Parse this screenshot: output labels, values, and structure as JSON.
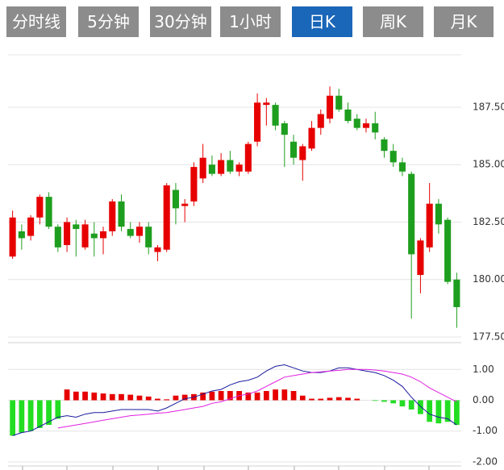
{
  "tabs": [
    "分时线",
    "5分钟",
    "30分钟",
    "1小时",
    "日K",
    "周K",
    "月K"
  ],
  "active_tab": 4,
  "chart_data": [
    {
      "type": "candlestick",
      "up_color": "#e60000",
      "down_color": "#1e9e1e",
      "open": [
        181.0,
        182.1,
        181.9,
        182.7,
        183.6,
        182.3,
        181.5,
        182.4,
        181.4,
        182.0,
        181.8,
        182.1,
        183.4,
        182.2,
        181.9,
        182.3,
        181.2,
        181.3,
        183.9,
        183.2,
        183.4,
        184.4,
        185.0,
        184.6,
        185.2,
        184.7,
        184.7,
        186.0,
        187.6,
        187.6,
        186.8,
        186.0,
        185.2,
        185.7,
        186.6,
        187.0,
        188.0,
        187.4,
        187.0,
        186.6,
        186.8,
        186.1,
        185.6,
        185.1,
        184.6,
        180.2,
        181.4,
        183.3,
        182.6,
        180.0
      ],
      "high": [
        183.0,
        182.4,
        182.8,
        183.7,
        183.8,
        182.4,
        182.7,
        182.6,
        182.6,
        182.5,
        182.3,
        183.5,
        183.7,
        182.5,
        182.5,
        182.5,
        181.5,
        184.2,
        184.2,
        183.5,
        185.1,
        185.9,
        185.4,
        185.5,
        185.6,
        185.1,
        186.0,
        188.1,
        187.9,
        187.7,
        186.9,
        186.3,
        185.9,
        186.9,
        187.4,
        188.4,
        188.3,
        187.7,
        187.2,
        187.0,
        187.3,
        186.2,
        185.9,
        185.3,
        184.7,
        181.8,
        184.2,
        183.5,
        182.7,
        180.3
      ],
      "low": [
        180.9,
        181.3,
        181.7,
        182.4,
        182.2,
        181.2,
        181.2,
        181.0,
        181.3,
        181.0,
        181.1,
        181.9,
        182.1,
        181.8,
        181.6,
        181.1,
        180.8,
        181.2,
        182.4,
        182.5,
        183.2,
        184.2,
        184.5,
        184.5,
        184.6,
        184.5,
        184.6,
        185.8,
        186.7,
        186.5,
        184.9,
        185.0,
        184.3,
        185.6,
        186.3,
        186.8,
        187.3,
        186.8,
        186.5,
        186.4,
        186.1,
        185.3,
        184.9,
        184.5,
        178.3,
        179.4,
        181.2,
        182.0,
        179.8,
        177.9
      ],
      "close": [
        182.7,
        181.8,
        182.7,
        183.6,
        182.3,
        181.4,
        182.5,
        182.2,
        182.4,
        181.8,
        182.1,
        183.4,
        182.3,
        181.9,
        182.3,
        181.4,
        181.4,
        184.1,
        183.1,
        183.3,
        184.9,
        185.3,
        184.6,
        185.2,
        184.7,
        185.0,
        185.9,
        187.7,
        187.7,
        186.7,
        186.3,
        185.3,
        185.8,
        186.6,
        187.2,
        188.0,
        187.4,
        186.9,
        186.6,
        186.8,
        186.4,
        185.6,
        185.1,
        184.7,
        181.1,
        181.7,
        183.3,
        182.4,
        179.9,
        178.8
      ],
      "ylim": [
        177.43,
        189.78
      ],
      "yticks": [
        {
          "value": 177.5,
          "label": "177.50"
        },
        {
          "value": 180,
          "label": "180.00"
        },
        {
          "value": 182.5,
          "label": "182.50"
        },
        {
          "value": 185,
          "label": "185.00"
        },
        {
          "value": 187.5,
          "label": "187.50"
        }
      ],
      "grid": true
    },
    {
      "type": "macd",
      "histogram": {
        "up_color": "#e60000",
        "down_color": "#22dd22",
        "values": [
          -1.15,
          -1.05,
          -1.0,
          -0.9,
          -0.8,
          -0.6,
          0.35,
          0.28,
          0.28,
          0.25,
          0.22,
          0.2,
          0.2,
          0.18,
          0.15,
          0.12,
          0.05,
          0.03,
          0.15,
          0.18,
          0.2,
          0.25,
          0.28,
          0.3,
          0.3,
          0.3,
          0.25,
          0.25,
          0.3,
          0.35,
          0.35,
          0.3,
          0.15,
          0.05,
          0.05,
          0.08,
          0.1,
          0.08,
          0.05,
          0,
          -0.02,
          -0.05,
          -0.1,
          -0.2,
          -0.3,
          -0.45,
          -0.7,
          -0.75,
          -0.7,
          -0.8
        ]
      },
      "series": [
        {
          "color": "#1a1a9e",
          "values": [
            -1.15,
            -1.05,
            -1.0,
            -0.85,
            -0.7,
            -0.55,
            -0.5,
            -0.55,
            -0.45,
            -0.4,
            -0.4,
            -0.35,
            -0.3,
            -0.3,
            -0.3,
            -0.3,
            -0.35,
            -0.25,
            -0.1,
            0.05,
            0.1,
            0.2,
            0.3,
            0.35,
            0.5,
            0.6,
            0.65,
            0.75,
            0.95,
            1.1,
            1.15,
            1.05,
            0.95,
            0.9,
            0.9,
            0.95,
            1.05,
            1.05,
            1.0,
            0.95,
            0.9,
            0.8,
            0.65,
            0.45,
            0.1,
            -0.2,
            -0.45,
            -0.55,
            -0.6,
            -0.8
          ]
        },
        {
          "color": "#e020e0",
          "values": [
            null,
            null,
            null,
            null,
            null,
            -0.9,
            -0.85,
            -0.8,
            -0.75,
            -0.7,
            -0.65,
            -0.6,
            -0.55,
            -0.5,
            -0.48,
            -0.45,
            -0.42,
            -0.4,
            -0.35,
            -0.3,
            -0.25,
            -0.2,
            -0.1,
            -0.05,
            0.05,
            0.15,
            0.2,
            0.3,
            0.45,
            0.6,
            0.75,
            0.8,
            0.85,
            0.9,
            0.92,
            0.95,
            0.97,
            1.0,
            1.0,
            1.0,
            0.98,
            0.95,
            0.9,
            0.85,
            0.75,
            0.6,
            0.4,
            0.25,
            0.1,
            -0.05
          ]
        }
      ],
      "ylim": [
        -2.08,
        1.87
      ],
      "yticks": [
        {
          "value": -2,
          "label": "-2.00"
        },
        {
          "value": -1,
          "label": "-1.00"
        },
        {
          "value": 0,
          "label": "0.00"
        },
        {
          "value": 1,
          "label": "1.00"
        }
      ],
      "grid": true
    }
  ]
}
